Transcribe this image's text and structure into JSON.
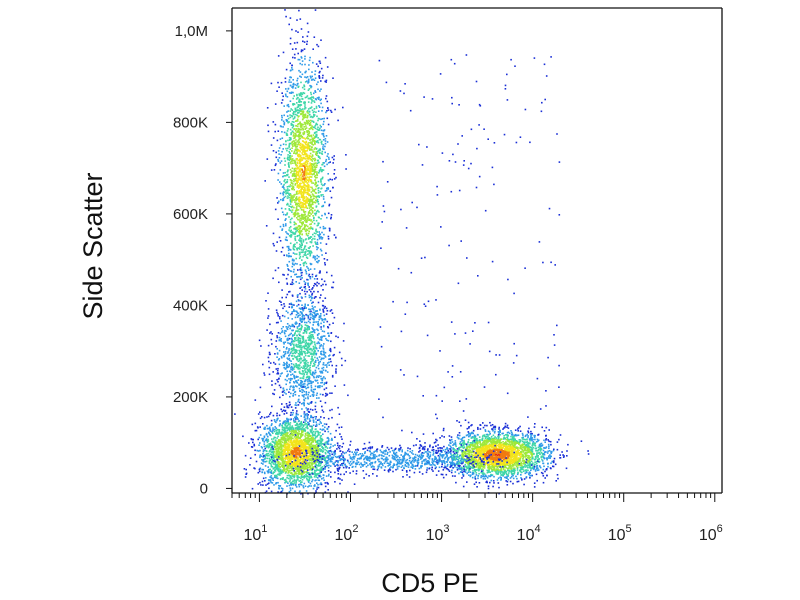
{
  "chart_data": {
    "type": "scatter",
    "title": "",
    "xlabel": "CD5 PE",
    "ylabel": "Side Scatter",
    "x_scale": "log",
    "xlim": [
      5,
      1200000
    ],
    "ylim": [
      -10000,
      1050000
    ],
    "grid": false,
    "legend": "none",
    "x_ticks": [
      {
        "value": 10,
        "base": "10",
        "exp": "1"
      },
      {
        "value": 100,
        "base": "10",
        "exp": "2"
      },
      {
        "value": 1000,
        "base": "10",
        "exp": "3"
      },
      {
        "value": 10000,
        "base": "10",
        "exp": "4"
      },
      {
        "value": 100000,
        "base": "10",
        "exp": "5"
      },
      {
        "value": 1000000,
        "base": "10",
        "exp": "6"
      }
    ],
    "y_ticks": [
      {
        "value": 0,
        "label": "0"
      },
      {
        "value": 200000,
        "label": "200K"
      },
      {
        "value": 400000,
        "label": "400K"
      },
      {
        "value": 600000,
        "label": "600K"
      },
      {
        "value": 800000,
        "label": "800K"
      },
      {
        "value": 1000000,
        "label": "1,0M"
      }
    ],
    "color_scale": [
      "#1a2fd6",
      "#2f9be8",
      "#3fd6a8",
      "#9ee83a",
      "#f2e41c",
      "#f07a10",
      "#e01010"
    ],
    "populations": [
      {
        "x_center": 30,
        "y_center": 690000,
        "x_spread_log10": 0.13,
        "y_spread": 120000,
        "density": 0.85
      },
      {
        "x_center": 30,
        "y_center": 300000,
        "x_spread_log10": 0.16,
        "y_spread": 70000,
        "density": 0.45
      },
      {
        "x_center": 25,
        "y_center": 80000,
        "x_spread_log10": 0.2,
        "y_spread": 40000,
        "density": 0.9
      },
      {
        "x_center": 4000,
        "y_center": 75000,
        "x_spread_log10": 0.28,
        "y_spread": 25000,
        "density": 1.0
      },
      {
        "x_center": 300,
        "y_center": 65000,
        "x_spread_log10": 0.55,
        "y_spread": 15000,
        "density": 0.3
      }
    ],
    "sparse_region": {
      "x_range": [
        200,
        20000
      ],
      "y_range": [
        100000,
        950000
      ]
    }
  }
}
